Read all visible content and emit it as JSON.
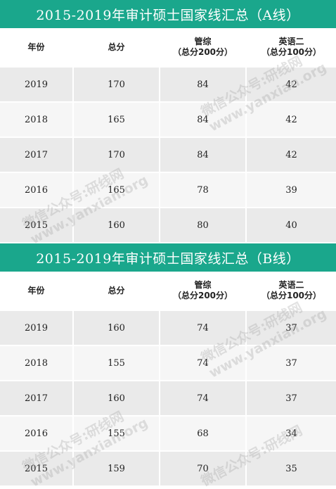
{
  "tables": [
    {
      "title": "2015-2019年审计硕士国家线汇总（A线）",
      "headers": [
        {
          "main": "年份",
          "sub": ""
        },
        {
          "main": "总分",
          "sub": ""
        },
        {
          "main": "管综",
          "sub": "（总分200分）"
        },
        {
          "main": "英语二",
          "sub": "（总分100分）"
        }
      ],
      "rows": [
        [
          "2019",
          "170",
          "84",
          "42"
        ],
        [
          "2018",
          "165",
          "84",
          "42"
        ],
        [
          "2017",
          "170",
          "84",
          "42"
        ],
        [
          "2016",
          "165",
          "78",
          "39"
        ],
        [
          "2015",
          "160",
          "80",
          "40"
        ]
      ]
    },
    {
      "title": "2015-2019年审计硕士国家线汇总（B线）",
      "headers": [
        {
          "main": "年份",
          "sub": ""
        },
        {
          "main": "总分",
          "sub": ""
        },
        {
          "main": "管综",
          "sub": "（总分200分）"
        },
        {
          "main": "英语二",
          "sub": "（总分100分）"
        }
      ],
      "rows": [
        [
          "2019",
          "160",
          "74",
          "37"
        ],
        [
          "2018",
          "155",
          "74",
          "37"
        ],
        [
          "2017",
          "160",
          "74",
          "37"
        ],
        [
          "2016",
          "155",
          "68",
          "34"
        ],
        [
          "2015",
          "159",
          "70",
          "35"
        ]
      ]
    }
  ],
  "watermark": {
    "line1": "微信公众号:研线网",
    "line2": "www.yanxian.org"
  }
}
